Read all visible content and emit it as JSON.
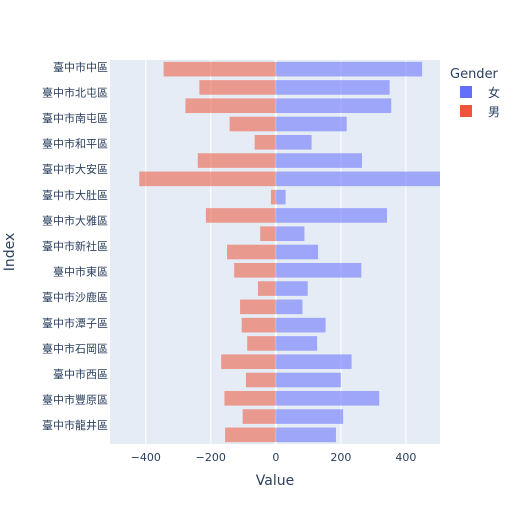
{
  "chart_data": {
    "type": "bar",
    "orientation": "horizontal",
    "barmode": "relative",
    "categories": [
      "臺中市中區",
      "臺中市北屯區",
      "臺中市南屯區",
      "臺中市和平區",
      "臺中市大安區",
      "臺中市大肚區",
      "臺中市大雅區",
      "臺中市新社區",
      "臺中市東區",
      "臺中市沙鹿區",
      "臺中市潭子區",
      "臺中市石岡區",
      "臺中市西區",
      "臺中市豐原區",
      "臺中市龍井區"
    ],
    "category_ticks": [
      "臺中市中區",
      "臺中市北屯區",
      "臺中市南屯區",
      "臺中市和平區",
      "臺中市大安區",
      "臺中市大肚區",
      "臺中市大雅區",
      "臺中市新社區",
      "臺中市東區",
      "臺中市沙鹿區",
      "臺中市潭子區",
      "臺中市石岡區",
      "臺中市西區",
      "臺中市豐原區",
      "臺中市龍井區"
    ],
    "rows": [
      {
        "category": "臺中市中區",
        "female": 450,
        "male": -345
      },
      {
        "category": "臺中市北屯區",
        "female": 350,
        "male": -235
      },
      {
        "category": "臺中市北屯區",
        "female": 355,
        "male": -278
      },
      {
        "category": "臺中市南屯區",
        "female": 218,
        "male": -142
      },
      {
        "category": "臺中市南屯區",
        "female": 110,
        "male": -65
      },
      {
        "category": "臺中市大肚區",
        "female": 265,
        "male": -240
      },
      {
        "category": "臺中市大雅區",
        "female": 510,
        "male": -420
      },
      {
        "category": "臺中市大雅區",
        "female": 30,
        "male": -15
      },
      {
        "category": "臺中市新社區",
        "female": 342,
        "male": -215
      },
      {
        "category": "臺中市新社區",
        "female": 88,
        "male": -48
      },
      {
        "category": "臺中市東區",
        "female": 130,
        "male": -150
      },
      {
        "category": "臺中市東區",
        "female": 263,
        "male": -128
      },
      {
        "category": "臺中市沙鹿區",
        "female": 98,
        "male": -55
      },
      {
        "category": "臺中市沙鹿區",
        "female": 82,
        "male": -110
      },
      {
        "category": "臺中市潭子區",
        "female": 153,
        "male": -105
      },
      {
        "category": "臺中市潭子區",
        "female": 127,
        "male": -88
      },
      {
        "category": "臺中市石岡區",
        "female": 233,
        "male": -168
      },
      {
        "category": "臺中市西區",
        "female": 200,
        "male": -92
      },
      {
        "category": "臺中市豐原區",
        "female": 318,
        "male": -158
      },
      {
        "category": "臺中市豐原區",
        "female": 207,
        "male": -102
      },
      {
        "category": "臺中市龍井區",
        "female": 185,
        "male": -156
      }
    ],
    "series": [
      {
        "key": "female",
        "name": "女",
        "color": "#636efa"
      },
      {
        "key": "male",
        "name": "男",
        "color": "#ef553b"
      }
    ],
    "bar_opacity": 0.55,
    "xlabel": "Value",
    "ylabel": "Index",
    "xlim": [
      -510,
      505
    ],
    "xticks": [
      -400,
      -200,
      0,
      200,
      400
    ],
    "xtick_labels": [
      "−400",
      "−200",
      "0",
      "200",
      "400"
    ],
    "legend_title": "Gender",
    "legend_position": "top-right",
    "grid": true,
    "background_color": "#e5ecf6",
    "grid_color": "#ffffff"
  }
}
